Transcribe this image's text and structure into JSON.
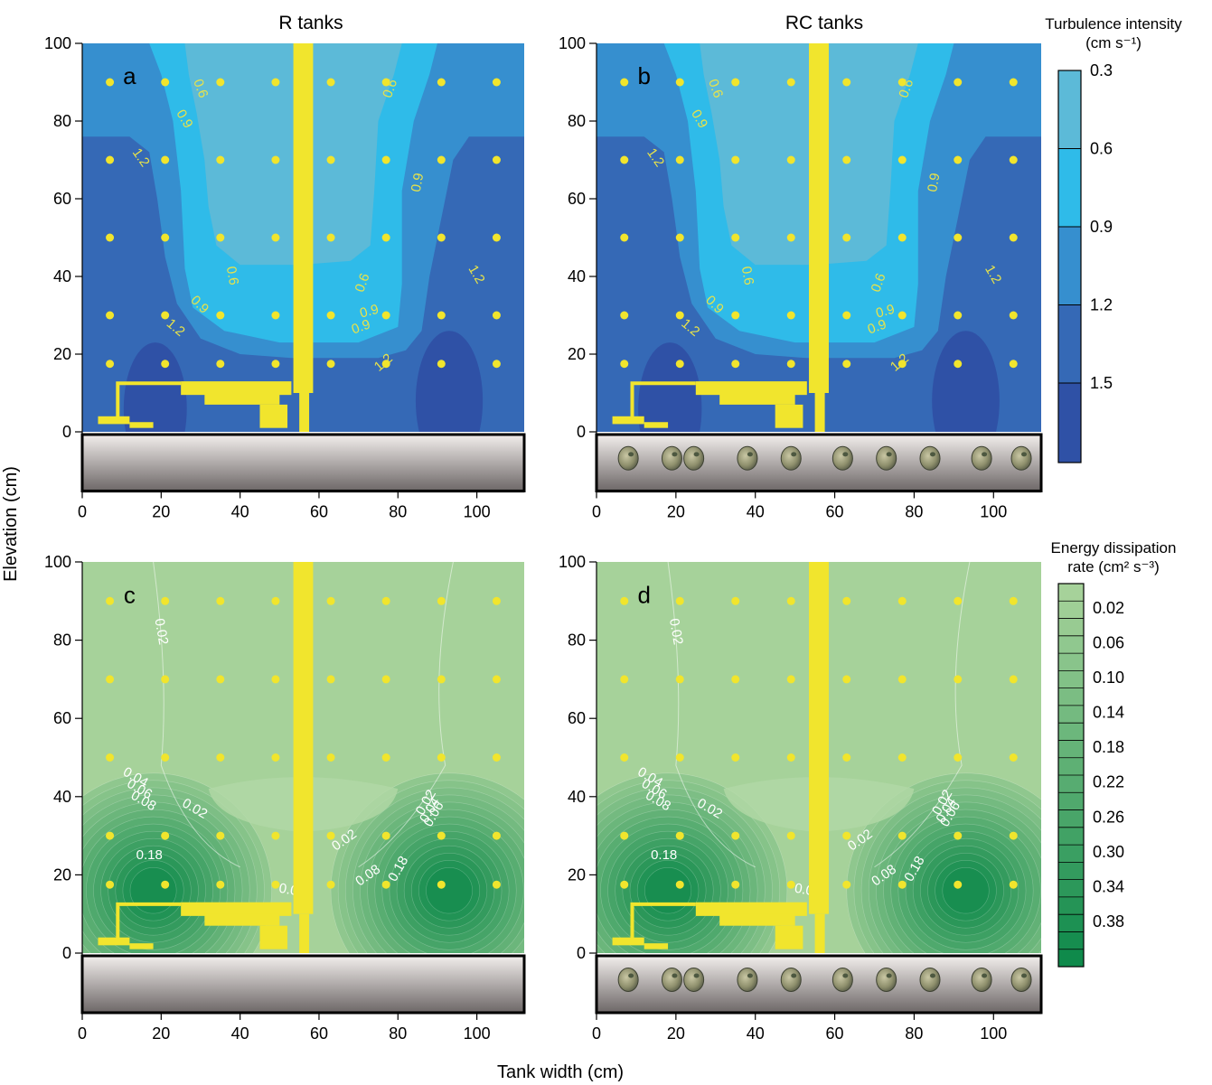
{
  "figure": {
    "column_titles": [
      "R tanks",
      "RC tanks"
    ],
    "xlabel": "Tank width (cm)",
    "ylabel": "Elevation (cm)"
  },
  "colorbars": {
    "turbulence": {
      "title_line1": "Turbulence intensity",
      "title_line2": "(cm s⁻¹)",
      "tick_labels": [
        "0.3",
        "0.6",
        "0.9",
        "1.2",
        "1.5"
      ],
      "colors": [
        "#5cbad8",
        "#2fbbe9",
        "#368fcf",
        "#3569b6",
        "#2f51a6"
      ]
    },
    "dissipation": {
      "title_line1": "Energy dissipation",
      "title_line2": "rate (cm² s⁻³)",
      "tick_labels": [
        "0.02",
        "0.06",
        "0.10",
        "0.14",
        "0.18",
        "0.22",
        "0.26",
        "0.30",
        "0.34",
        "0.38"
      ],
      "color_light": "#a6d29a",
      "color_dark": "#0f8a4b"
    }
  },
  "chart_data": [
    {
      "type": "heatmap",
      "panel": "a",
      "column": "R tanks",
      "variable": "Turbulence intensity (cm s-1)",
      "xlim": [
        0,
        112
      ],
      "ylim": [
        -15,
        100
      ],
      "xticks": [
        "0",
        "20",
        "40",
        "60",
        "80",
        "100"
      ],
      "yticks": [
        "0",
        "20",
        "40",
        "60",
        "80",
        "100"
      ],
      "contour_levels": [
        0.3,
        0.6,
        0.9,
        1.2,
        1.5
      ],
      "contour_labels": [
        "0.6",
        "0.9",
        "1.2",
        "0.6",
        "0.9",
        "0.6",
        "0.9",
        "1.2",
        "0.6",
        "0.9",
        "1.2",
        "0.9",
        "1.2"
      ],
      "sample_points": {
        "x": [
          7,
          21,
          35,
          49,
          63,
          77,
          91,
          105
        ],
        "y": [
          17.5,
          30,
          50,
          70,
          90
        ]
      },
      "substrate": "bare"
    },
    {
      "type": "heatmap",
      "panel": "b",
      "column": "RC tanks",
      "variable": "Turbulence intensity (cm s-1)",
      "xlim": [
        0,
        112
      ],
      "ylim": [
        -15,
        100
      ],
      "xticks": [
        "0",
        "20",
        "40",
        "60",
        "80",
        "100"
      ],
      "yticks": [
        "0",
        "20",
        "40",
        "60",
        "80",
        "100"
      ],
      "contour_levels": [
        0.3,
        0.6,
        0.9,
        1.2,
        1.5
      ],
      "contour_labels": [
        "0.6",
        "0.9",
        "1.2",
        "0.6",
        "0.9",
        "0.6",
        "0.9",
        "1.2",
        "0.6",
        "0.9",
        "1.2",
        "0.9",
        "1.2"
      ],
      "sample_points": {
        "x": [
          7,
          21,
          35,
          49,
          63,
          77,
          91,
          105
        ],
        "y": [
          17.5,
          30,
          50,
          70,
          90
        ]
      },
      "substrate": "clams"
    },
    {
      "type": "heatmap",
      "panel": "c",
      "column": "R tanks",
      "variable": "Energy dissipation rate (cm2 s-3)",
      "xlim": [
        0,
        112
      ],
      "ylim": [
        -15,
        100
      ],
      "xticks": [
        "0",
        "20",
        "40",
        "60",
        "80",
        "100"
      ],
      "yticks": [
        "0",
        "20",
        "40",
        "60",
        "80",
        "100"
      ],
      "contour_levels": [
        0.02,
        0.06,
        0.1,
        0.14,
        0.18,
        0.22,
        0.26,
        0.3,
        0.34,
        0.38
      ],
      "contour_labels": [
        "0.02",
        "0.04",
        "0.06",
        "0.08",
        "0.02",
        "0.18",
        "0.02",
        "0.04",
        "0.02",
        "0.04",
        "0.06",
        "0.08",
        "0.18"
      ],
      "sample_points": {
        "x": [
          7,
          21,
          35,
          49,
          63,
          77,
          91,
          105
        ],
        "y": [
          17.5,
          30,
          50,
          70,
          90
        ]
      },
      "substrate": "bare"
    },
    {
      "type": "heatmap",
      "panel": "d",
      "column": "RC tanks",
      "variable": "Energy dissipation rate (cm2 s-3)",
      "xlim": [
        0,
        112
      ],
      "ylim": [
        -15,
        100
      ],
      "xticks": [
        "0",
        "20",
        "40",
        "60",
        "80",
        "100"
      ],
      "yticks": [
        "0",
        "20",
        "40",
        "60",
        "80",
        "100"
      ],
      "contour_levels": [
        0.02,
        0.06,
        0.1,
        0.14,
        0.18,
        0.22,
        0.26,
        0.3,
        0.34,
        0.38
      ],
      "contour_labels": [
        "0.02",
        "0.04",
        "0.06",
        "0.08",
        "0.02",
        "0.18",
        "0.02",
        "0.04",
        "0.02",
        "0.04",
        "0.06",
        "0.08",
        "0.18"
      ],
      "sample_points": {
        "x": [
          7,
          21,
          35,
          49,
          63,
          77,
          91,
          105
        ],
        "y": [
          17.5,
          30,
          50,
          70,
          90
        ]
      },
      "substrate": "clams"
    }
  ]
}
